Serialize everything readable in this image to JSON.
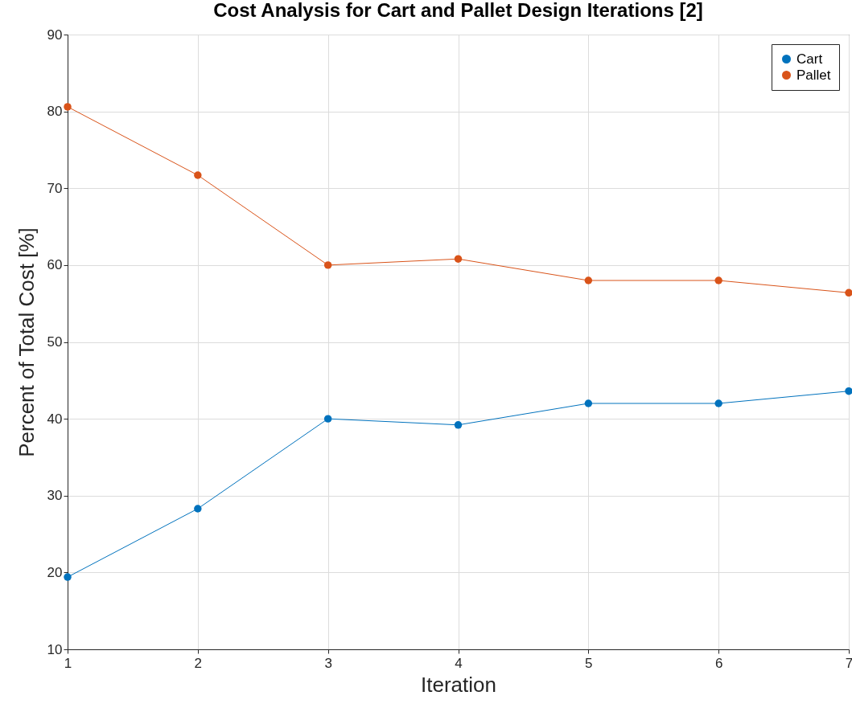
{
  "chart_data": {
    "type": "line",
    "title": "Cost Analysis for Cart and Pallet Design Iterations [2]",
    "xlabel": "Iteration",
    "ylabel": "Percent of Total Cost [%]",
    "x": [
      1,
      2,
      3,
      4,
      5,
      6,
      7
    ],
    "series": [
      {
        "name": "Cart",
        "color": "#0072bd",
        "values": [
          19.4,
          28.3,
          40.0,
          39.2,
          42.0,
          42.0,
          43.6
        ]
      },
      {
        "name": "Pallet",
        "color": "#d95319",
        "values": [
          80.6,
          71.7,
          60.0,
          60.8,
          58.0,
          58.0,
          56.4
        ]
      }
    ],
    "xlim": [
      1,
      7
    ],
    "xticks": [
      1,
      2,
      3,
      4,
      5,
      6,
      7
    ],
    "ylim": [
      10,
      90
    ],
    "yticks": [
      10,
      20,
      30,
      40,
      50,
      60,
      70,
      80,
      90
    ],
    "grid": true,
    "legend": "top right",
    "marker": "circle",
    "line_style": "solid"
  }
}
